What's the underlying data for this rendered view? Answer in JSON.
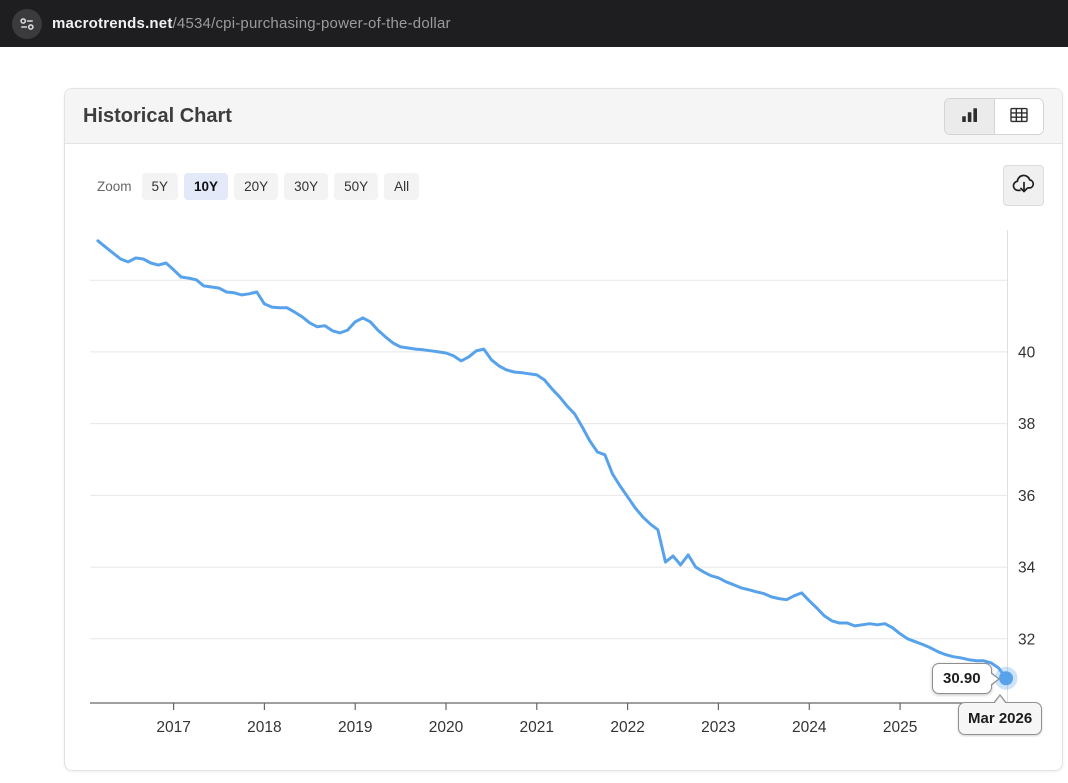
{
  "browser": {
    "url_host": "macrotrends.net",
    "url_path": "/4534/cpi-purchasing-power-of-the-dollar"
  },
  "panel": {
    "title": "Historical Chart",
    "zoom_label": "Zoom",
    "zoom_buttons": [
      {
        "label": "5Y",
        "selected": false
      },
      {
        "label": "10Y",
        "selected": true
      },
      {
        "label": "20Y",
        "selected": false
      },
      {
        "label": "30Y",
        "selected": false
      },
      {
        "label": "50Y",
        "selected": false
      },
      {
        "label": "All",
        "selected": false
      }
    ],
    "icons": {
      "chart_view": "bar-chart-icon",
      "table_view": "table-icon",
      "download": "cloud-download-icon",
      "url_badge": "sliders-icon"
    },
    "colors": {
      "selected_zoom_bg": "#e3e9f8",
      "header_bg": "#f5f5f6"
    }
  },
  "chart_data": {
    "type": "line",
    "title": "",
    "xlabel": "",
    "ylabel": "",
    "start_month": "2016-03",
    "end_month": "2026-03",
    "frequency": "monthly",
    "values": [
      43.1,
      42.93,
      42.76,
      42.59,
      42.51,
      42.62,
      42.59,
      42.48,
      42.42,
      42.48,
      42.29,
      42.09,
      42.06,
      42.01,
      41.84,
      41.81,
      41.78,
      41.67,
      41.65,
      41.59,
      41.62,
      41.67,
      41.34,
      41.25,
      41.23,
      41.23,
      41.11,
      40.98,
      40.81,
      40.7,
      40.73,
      40.59,
      40.53,
      40.61,
      40.84,
      40.95,
      40.84,
      40.61,
      40.42,
      40.25,
      40.14,
      40.11,
      40.08,
      40.06,
      40.03,
      40.0,
      39.97,
      39.89,
      39.75,
      39.86,
      40.03,
      40.08,
      39.78,
      39.61,
      39.5,
      39.44,
      39.42,
      39.39,
      39.36,
      39.22,
      38.97,
      38.75,
      38.49,
      38.27,
      37.91,
      37.52,
      37.21,
      37.13,
      36.6,
      36.26,
      35.96,
      35.65,
      35.4,
      35.2,
      35.04,
      34.14,
      34.31,
      34.06,
      34.34,
      34.0,
      33.87,
      33.76,
      33.7,
      33.59,
      33.51,
      33.42,
      33.37,
      33.31,
      33.26,
      33.17,
      33.12,
      33.09,
      33.2,
      33.28,
      33.06,
      32.86,
      32.64,
      32.5,
      32.44,
      32.44,
      32.36,
      32.39,
      32.42,
      32.39,
      32.42,
      32.31,
      32.14,
      32.0,
      31.92,
      31.84,
      31.75,
      31.64,
      31.56,
      31.5,
      31.47,
      31.42,
      31.39,
      31.39,
      31.33,
      31.19,
      30.9
    ],
    "x_ticks": [
      {
        "month_index": 10,
        "label": "2017"
      },
      {
        "month_index": 22,
        "label": "2018"
      },
      {
        "month_index": 34,
        "label": "2019"
      },
      {
        "month_index": 46,
        "label": "2020"
      },
      {
        "month_index": 58,
        "label": "2021"
      },
      {
        "month_index": 70,
        "label": "2022"
      },
      {
        "month_index": 82,
        "label": "2023"
      },
      {
        "month_index": 94,
        "label": "2024"
      },
      {
        "month_index": 106,
        "label": "2025"
      }
    ],
    "y_ticks": [
      {
        "value": 42,
        "label": ""
      },
      {
        "value": 40,
        "label": "40"
      },
      {
        "value": 38,
        "label": "38"
      },
      {
        "value": 36,
        "label": "36"
      },
      {
        "value": 34,
        "label": "34"
      },
      {
        "value": 32,
        "label": "32"
      }
    ],
    "ylim": [
      30.21,
      43.4
    ],
    "x_range_months": [
      -1.04,
      120.26
    ],
    "grid": true,
    "y_axis_side": "right",
    "line_color": "#57a2eb",
    "grid_color": "#e7e7e7",
    "axis_color": "#666666",
    "label_color": "#333333",
    "marker": {
      "month_index": 120,
      "value": 30.9
    },
    "tooltip": {
      "value_label": "30.90",
      "date_label": "Mar 2026"
    }
  }
}
